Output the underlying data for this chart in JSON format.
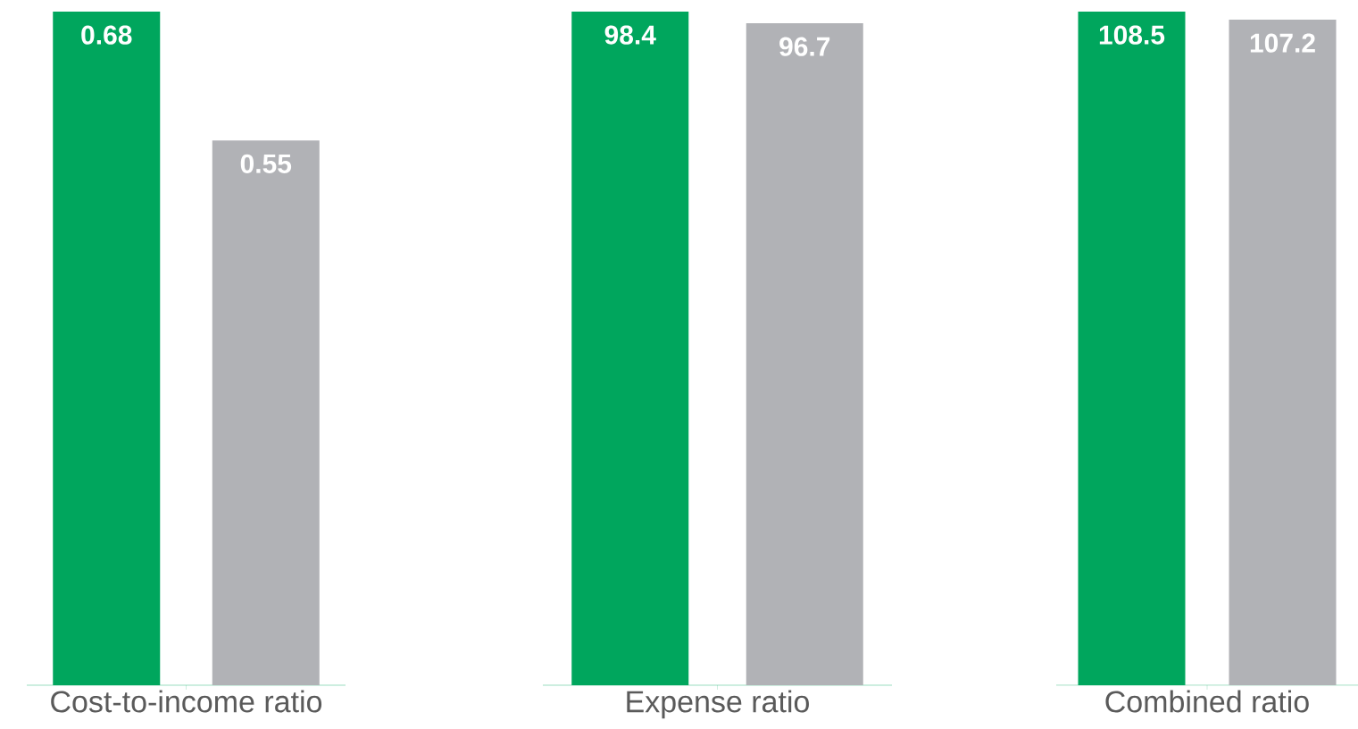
{
  "chart_data": [
    {
      "type": "bar",
      "xlabel": "Cost-to-income ratio",
      "categories": [
        null,
        null
      ],
      "values": [
        0.68,
        0.55
      ],
      "colors": [
        "#00a65d",
        "#b1b2b6"
      ],
      "value_labels": [
        "0.68",
        "0.55"
      ]
    },
    {
      "type": "bar",
      "xlabel": "Expense ratio",
      "categories": [
        null,
        null
      ],
      "values": [
        98.4,
        96.7
      ],
      "colors": [
        "#00a65d",
        "#b1b2b6"
      ],
      "value_labels": [
        "98.4",
        "96.7"
      ]
    },
    {
      "type": "bar",
      "xlabel": "Combined ratio",
      "categories": [
        null,
        null
      ],
      "values": [
        108.5,
        107.2
      ],
      "colors": [
        "#00a65d",
        "#b1b2b6"
      ],
      "value_labels": [
        "108.5",
        "107.2"
      ]
    }
  ]
}
